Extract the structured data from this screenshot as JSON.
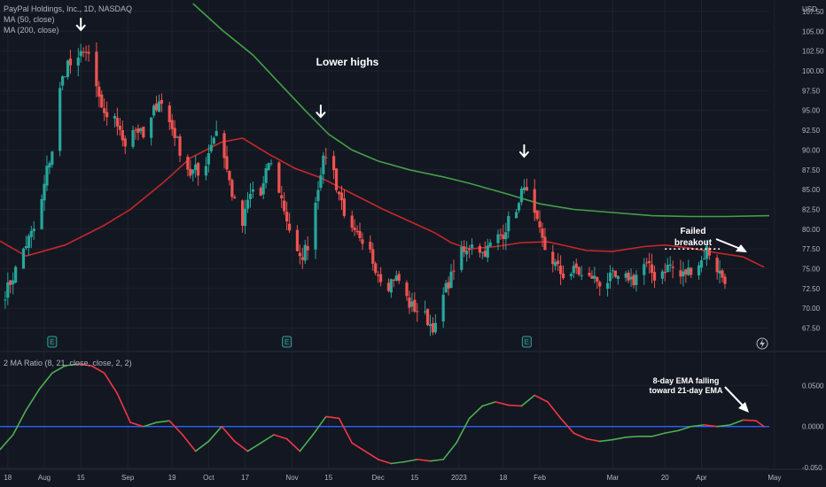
{
  "colors": {
    "background": "#131722",
    "grid": "#1e222d",
    "candle_up": "#26a69a",
    "candle_down": "#ef5350",
    "ma50": "#c62828",
    "ma200": "#43a047",
    "ratio_up": "#4caf50",
    "ratio_down": "#f23645",
    "zero_line": "#2962ff"
  },
  "header": {
    "title": "PayPal Holdings, Inc., 1D, NASDAQ",
    "ma50_label": "MA (50, close)",
    "ma200_label": "MA (200, close)",
    "indicator_label": "2 MA Ratio (8, 21, close, close, 2, 2)",
    "currency": "USD"
  },
  "annotations": {
    "lower_highs": "Lower highs",
    "failed_breakout_line1": "Failed",
    "failed_breakout_line2": "breakout",
    "ema_note_line1": "8-day EMA falling",
    "ema_note_line2": "toward 21-day EMA"
  },
  "earnings_marker": "E",
  "chart_data": [
    {
      "type": "candlestick",
      "title": "PayPal Holdings, Inc., 1D, NASDAQ",
      "y_unit": "USD",
      "ylim": [
        66.0,
        108.5
      ],
      "y_ticks": [
        "107.50",
        "105.00",
        "102.50",
        "100.00",
        "97.50",
        "95.00",
        "92.50",
        "90.00",
        "87.50",
        "85.00",
        "82.50",
        "80.00",
        "77.50",
        "75.00",
        "72.50",
        "70.00",
        "67.50"
      ],
      "x_ticks": [
        "18",
        "Aug",
        "15",
        "Sep",
        "19",
        "Oct",
        "17",
        "Nov",
        "15",
        "Dec",
        "15",
        "2023",
        "18",
        "Feb",
        "Mar",
        "20",
        "Apr",
        "May"
      ],
      "x_tick_days": [
        18,
        32,
        46,
        64,
        81,
        95,
        109,
        127,
        141,
        160,
        174,
        191,
        208,
        222,
        250,
        270,
        284,
        312
      ],
      "x_range_days": [
        15,
        310
      ],
      "x_note": "x values are calendar days from 2022-07-01 (2023-01-01 = day 184)",
      "series": [
        {
          "name": "MA (50, close)",
          "type": "line",
          "points": [
            [
              15,
              78.5
            ],
            [
              25,
              76.6
            ],
            [
              40,
              78.0
            ],
            [
              55,
              80.5
            ],
            [
              65,
              82.5
            ],
            [
              78,
              86.0
            ],
            [
              88,
              89.0
            ],
            [
              100,
              91.0
            ],
            [
              108,
              91.5
            ],
            [
              118,
              89.5
            ],
            [
              128,
              87.7
            ],
            [
              138,
              86.5
            ],
            [
              150,
              84.5
            ],
            [
              162,
              82.5
            ],
            [
              172,
              81.0
            ],
            [
              182,
              79.5
            ],
            [
              188,
              78.3
            ],
            [
              195,
              77.5
            ],
            [
              205,
              77.8
            ],
            [
              215,
              78.3
            ],
            [
              225,
              78.4
            ],
            [
              232,
              77.9
            ],
            [
              240,
              77.3
            ],
            [
              250,
              77.2
            ],
            [
              262,
              77.8
            ],
            [
              270,
              78.0
            ],
            [
              280,
              77.6
            ],
            [
              290,
              77.0
            ],
            [
              300,
              76.5
            ],
            [
              308,
              75.2
            ]
          ]
        },
        {
          "name": "MA (200, close)",
          "type": "line",
          "points": [
            [
              89,
              108.5
            ],
            [
              100,
              105.2
            ],
            [
              112,
              102.0
            ],
            [
              122,
              98.5
            ],
            [
              132,
              95.0
            ],
            [
              141,
              92.0
            ],
            [
              150,
              90.0
            ],
            [
              160,
              88.6
            ],
            [
              172,
              87.5
            ],
            [
              185,
              86.6
            ],
            [
              195,
              85.8
            ],
            [
              210,
              84.4
            ],
            [
              222,
              83.2
            ],
            [
              235,
              82.5
            ],
            [
              250,
              82.1
            ],
            [
              265,
              81.7
            ],
            [
              280,
              81.6
            ],
            [
              293,
              81.6
            ],
            [
              310,
              81.7
            ]
          ]
        },
        {
          "name": "Price",
          "type": "candles",
          "anchors": [
            [
              15,
              70.5
            ],
            [
              20,
              74.0
            ],
            [
              24,
              77.5
            ],
            [
              28,
              80.0
            ],
            [
              31,
              83.5
            ],
            [
              33,
              87.5
            ],
            [
              35,
              90.0
            ],
            [
              37,
              96.0
            ],
            [
              39,
              99.0
            ],
            [
              41,
              101.0
            ],
            [
              43,
              100.5
            ],
            [
              45,
              101.0
            ],
            [
              47,
              103.0
            ],
            [
              49,
              101.5
            ],
            [
              51,
              99.0
            ],
            [
              53,
              96.5
            ],
            [
              55,
              94.0
            ],
            [
              57,
              93.0
            ],
            [
              59,
              94.5
            ],
            [
              61,
              92.0
            ],
            [
              63,
              91.0
            ],
            [
              65,
              93.0
            ],
            [
              68,
              92.5
            ],
            [
              70,
              91.5
            ],
            [
              72,
              92.5
            ],
            [
              74,
              95.0
            ],
            [
              76,
              96.5
            ],
            [
              78,
              95.0
            ],
            [
              80,
              93.5
            ],
            [
              82,
              92.0
            ],
            [
              84,
              90.0
            ],
            [
              86,
              88.5
            ],
            [
              88,
              87.0
            ],
            [
              90,
              87.5
            ],
            [
              92,
              86.0
            ],
            [
              94,
              88.5
            ],
            [
              96,
              91.0
            ],
            [
              98,
              92.5
            ],
            [
              100,
              91.0
            ],
            [
              102,
              87.5
            ],
            [
              104,
              84.5
            ],
            [
              106,
              82.0
            ],
            [
              108,
              80.5
            ],
            [
              110,
              83.5
            ],
            [
              112,
              85.0
            ],
            [
              114,
              83.0
            ],
            [
              116,
              85.5
            ],
            [
              118,
              88.5
            ],
            [
              120,
              87.5
            ],
            [
              122,
              85.0
            ],
            [
              124,
              82.5
            ],
            [
              126,
              80.0
            ],
            [
              128,
              77.5
            ],
            [
              130,
              76.0
            ],
            [
              132,
              77.5
            ],
            [
              134,
              78.5
            ],
            [
              136,
              83.5
            ],
            [
              138,
              87.5
            ],
            [
              140,
              89.5
            ],
            [
              142,
              89.0
            ],
            [
              144,
              85.5
            ],
            [
              146,
              83.5
            ],
            [
              148,
              81.0
            ],
            [
              150,
              79.5
            ],
            [
              152,
              79.0
            ],
            [
              154,
              77.5
            ],
            [
              156,
              78.0
            ],
            [
              158,
              76.0
            ],
            [
              160,
              74.5
            ],
            [
              162,
              73.5
            ],
            [
              164,
              73.0
            ],
            [
              166,
              74.0
            ],
            [
              168,
              73.5
            ],
            [
              170,
              72.0
            ],
            [
              172,
              70.5
            ],
            [
              174,
              70.0
            ],
            [
              176,
              69.5
            ],
            [
              178,
              69.0
            ],
            [
              180,
              68.0
            ],
            [
              182,
              67.5
            ],
            [
              184,
              70.5
            ],
            [
              186,
              72.5
            ],
            [
              188,
              74.0
            ],
            [
              190,
              76.5
            ],
            [
              192,
              77.0
            ],
            [
              194,
              77.0
            ],
            [
              196,
              78.5
            ],
            [
              198,
              78.0
            ],
            [
              200,
              77.0
            ],
            [
              202,
              77.5
            ],
            [
              204,
              78.5
            ],
            [
              206,
              79.0
            ],
            [
              208,
              79.5
            ],
            [
              210,
              81.0
            ],
            [
              212,
              82.5
            ],
            [
              214,
              83.0
            ],
            [
              216,
              86.0
            ],
            [
              218,
              82.5
            ],
            [
              220,
              81.5
            ],
            [
              222,
              79.5
            ],
            [
              224,
              77.5
            ],
            [
              226,
              76.5
            ],
            [
              228,
              75.5
            ],
            [
              230,
              74.5
            ],
            [
              232,
              74.0
            ],
            [
              234,
              74.5
            ],
            [
              236,
              75.0
            ],
            [
              238,
              74.0
            ],
            [
              240,
              73.5
            ],
            [
              242,
              74.0
            ],
            [
              244,
              73.5
            ],
            [
              246,
              73.0
            ],
            [
              248,
              73.5
            ],
            [
              250,
              74.0
            ],
            [
              252,
              73.5
            ],
            [
              254,
              73.5
            ],
            [
              256,
              74.0
            ],
            [
              258,
              73.5
            ],
            [
              260,
              75.0
            ],
            [
              262,
              75.5
            ],
            [
              264,
              75.0
            ],
            [
              266,
              74.0
            ],
            [
              268,
              74.5
            ],
            [
              270,
              75.0
            ],
            [
              272,
              75.5
            ],
            [
              274,
              74.5
            ],
            [
              276,
              74.0
            ],
            [
              278,
              74.5
            ],
            [
              280,
              75.0
            ],
            [
              282,
              75.5
            ],
            [
              284,
              76.0
            ],
            [
              286,
              77.5
            ],
            [
              288,
              76.5
            ],
            [
              290,
              75.0
            ],
            [
              292,
              74.0
            ],
            [
              294,
              73.5
            ]
          ]
        }
      ],
      "markers": [
        {
          "type": "down-arrow",
          "x": 46,
          "y": 105.5
        },
        {
          "type": "down-arrow",
          "x": 138,
          "y": 94.5
        },
        {
          "type": "down-arrow",
          "x": 216,
          "y": 89.5
        }
      ],
      "failed_breakout_level": 77.5,
      "failed_breakout_range": [
        270,
        291
      ],
      "earnings_days": [
        35,
        125,
        217
      ],
      "lower_highs_label": "Lower highs",
      "failed_breakout_label": [
        "Failed",
        "breakout"
      ]
    },
    {
      "type": "line",
      "title": "2 MA Ratio (8, 21, close, close, 2, 2)",
      "ylim": [
        -0.052,
        0.088
      ],
      "y_ticks": [
        "0.0500",
        "0.0000",
        "-0.050"
      ],
      "x_range_days": [
        15,
        310
      ],
      "series": [
        {
          "name": "2 MA Ratio (8, 21, close, close, 2, 2)",
          "points": [
            [
              15,
              -0.028
            ],
            [
              20,
              -0.01
            ],
            [
              25,
              0.02
            ],
            [
              30,
              0.045
            ],
            [
              35,
              0.065
            ],
            [
              40,
              0.074
            ],
            [
              45,
              0.076
            ],
            [
              50,
              0.074
            ],
            [
              55,
              0.065
            ],
            [
              60,
              0.04
            ],
            [
              65,
              0.005
            ],
            [
              70,
              0.0
            ],
            [
              75,
              0.005
            ],
            [
              80,
              0.007
            ],
            [
              85,
              -0.01
            ],
            [
              90,
              -0.03
            ],
            [
              95,
              -0.018
            ],
            [
              100,
              0.0
            ],
            [
              105,
              -0.018
            ],
            [
              110,
              -0.03
            ],
            [
              115,
              -0.02
            ],
            [
              120,
              -0.01
            ],
            [
              125,
              -0.015
            ],
            [
              130,
              -0.03
            ],
            [
              135,
              -0.01
            ],
            [
              140,
              0.012
            ],
            [
              145,
              0.01
            ],
            [
              150,
              -0.02
            ],
            [
              155,
              -0.03
            ],
            [
              160,
              -0.04
            ],
            [
              165,
              -0.045
            ],
            [
              170,
              -0.043
            ],
            [
              175,
              -0.04
            ],
            [
              180,
              -0.042
            ],
            [
              185,
              -0.04
            ],
            [
              190,
              -0.02
            ],
            [
              195,
              0.01
            ],
            [
              200,
              0.025
            ],
            [
              205,
              0.03
            ],
            [
              210,
              0.026
            ],
            [
              215,
              0.025
            ],
            [
              220,
              0.038
            ],
            [
              225,
              0.03
            ],
            [
              230,
              0.01
            ],
            [
              235,
              -0.008
            ],
            [
              240,
              -0.015
            ],
            [
              245,
              -0.018
            ],
            [
              250,
              -0.016
            ],
            [
              255,
              -0.013
            ],
            [
              260,
              -0.012
            ],
            [
              265,
              -0.012
            ],
            [
              270,
              -0.008
            ],
            [
              275,
              -0.005
            ],
            [
              280,
              0.0
            ],
            [
              285,
              0.002
            ],
            [
              290,
              0.0
            ],
            [
              295,
              0.002
            ],
            [
              300,
              0.008
            ],
            [
              305,
              0.007
            ],
            [
              308,
              0.0
            ]
          ]
        }
      ],
      "zero_line": 0.0,
      "annotation": [
        "8-day EMA falling",
        "toward 21-day EMA"
      ]
    }
  ]
}
